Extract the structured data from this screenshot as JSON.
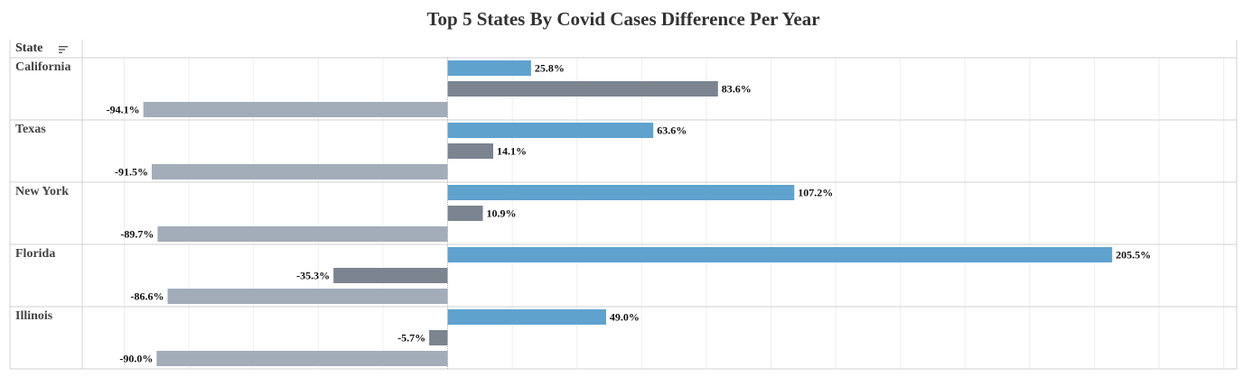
{
  "title": "Top 5 States By Covid Cases Difference Per Year",
  "column_header": "State",
  "icons": {
    "sort": "sort-descending-icon"
  },
  "colors": {
    "series1": "#5fa2ce",
    "series2": "#7b848f",
    "series3": "#a3acb9",
    "gridline": "#eeeeee",
    "row_divider": "#d0d0d0",
    "zero_line": "#b0b0b0",
    "label_text": "#111111",
    "state_text": "#444444"
  },
  "chart_data": {
    "type": "bar",
    "orientation": "horizontal",
    "categories": [
      "California",
      "Texas",
      "New York",
      "Florida",
      "Illinois"
    ],
    "series": [
      {
        "values": [
          25.8,
          63.6,
          107.2,
          205.5,
          49.0
        ]
      },
      {
        "values": [
          83.6,
          14.1,
          10.9,
          -35.3,
          -5.7
        ]
      },
      {
        "values": [
          -94.1,
          -91.5,
          -89.7,
          -86.6,
          -90.0
        ]
      }
    ],
    "value_labels": [
      [
        "25.8%",
        "83.6%",
        "-94.1%"
      ],
      [
        "63.6%",
        "14.1%",
        "-91.5%"
      ],
      [
        "107.2%",
        "10.9%",
        "-89.7%"
      ],
      [
        "205.5%",
        "-35.3%",
        "-86.6%"
      ],
      [
        "49.0%",
        "-5.7%",
        "-90.0%"
      ]
    ],
    "xlim": [
      -113,
      244
    ],
    "xgrid_step": 20,
    "grid": true,
    "legend": "none"
  }
}
